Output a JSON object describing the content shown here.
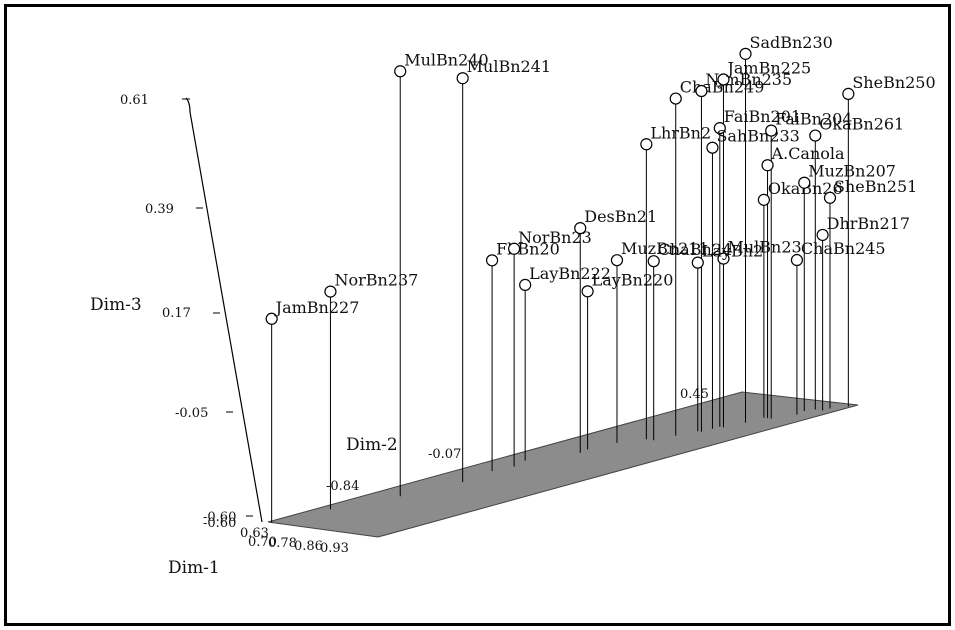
{
  "chart_data": {
    "type": "scatter",
    "projection": "3d",
    "title": "",
    "axes": {
      "x": {
        "label": "Dim-1",
        "ticks": [
          "0.63",
          "0.70",
          "0.78",
          "0.86",
          "0.93"
        ]
      },
      "y": {
        "label": "Dim-2",
        "ticks": [
          "-0.84",
          "-0.07",
          "0.45"
        ]
      },
      "z": {
        "label": "Dim-3",
        "ticks": [
          "-0.60",
          "-0.05",
          "0.17",
          "0.39",
          "0.61"
        ],
        "ylim": [
          -0.6,
          0.61
        ]
      }
    },
    "floor_color": "#8c8c8c",
    "points": [
      {
        "label": "MulBn240",
        "x": 0.7,
        "y": -0.55,
        "z": 0.61
      },
      {
        "label": "MulBn241",
        "x": 0.72,
        "y": -0.4,
        "z": 0.55
      },
      {
        "label": "NorBn237",
        "x": 0.66,
        "y": -0.7,
        "z": 0.02
      },
      {
        "label": "JamBn227",
        "x": 0.64,
        "y": -0.84,
        "z": -0.02
      },
      {
        "label": "FbBn20",
        "x": 0.7,
        "y": -0.3,
        "z": 0.0
      },
      {
        "label": "NorBn23",
        "x": 0.71,
        "y": -0.25,
        "z": 0.02
      },
      {
        "label": "DesBn21",
        "x": 0.74,
        "y": -0.1,
        "z": 0.04
      },
      {
        "label": "LayBn222",
        "x": 0.69,
        "y": -0.2,
        "z": -0.1
      },
      {
        "label": "LayBn220",
        "x": 0.73,
        "y": -0.07,
        "z": -0.15
      },
      {
        "label": "MuzBn211",
        "x": 0.74,
        "y": 0.0,
        "z": -0.08
      },
      {
        "label": "ChaBn24",
        "x": 0.79,
        "y": 0.05,
        "z": -0.09
      },
      {
        "label": "LhrBn2",
        "x": 0.77,
        "y": 0.05,
        "z": 0.24
      },
      {
        "label": "ChaBn249",
        "x": 0.8,
        "y": 0.1,
        "z": 0.36
      },
      {
        "label": "NjmBn235",
        "x": 0.82,
        "y": 0.15,
        "z": 0.37
      },
      {
        "label": "JamBn225",
        "x": 0.83,
        "y": 0.2,
        "z": 0.39
      },
      {
        "label": "SadBn230",
        "x": 0.84,
        "y": 0.25,
        "z": 0.45
      },
      {
        "label": "FaiBn201",
        "x": 0.82,
        "y": 0.2,
        "z": 0.25
      },
      {
        "label": "SahBn233",
        "x": 0.82,
        "y": 0.18,
        "z": 0.2
      },
      {
        "label": "FaiBn204",
        "x": 0.86,
        "y": 0.3,
        "z": 0.22
      },
      {
        "label": "OkaBn261",
        "x": 0.88,
        "y": 0.4,
        "z": 0.18
      },
      {
        "label": "A.Canola",
        "x": 0.85,
        "y": 0.3,
        "z": 0.12
      },
      {
        "label": "OkaBn26",
        "x": 0.84,
        "y": 0.3,
        "z": 0.02
      },
      {
        "label": "MuzBn207",
        "x": 0.87,
        "y": 0.38,
        "z": 0.05
      },
      {
        "label": "SheBn250",
        "x": 0.92,
        "y": 0.45,
        "z": 0.29
      },
      {
        "label": "SheBn251",
        "x": 0.9,
        "y": 0.42,
        "z": 0.0
      },
      {
        "label": "DhrBn217",
        "x": 0.9,
        "y": 0.4,
        "z": -0.1
      },
      {
        "label": "ChaBn245",
        "x": 0.88,
        "y": 0.35,
        "z": -0.16
      },
      {
        "label": "MulBn23",
        "x": 0.83,
        "y": 0.2,
        "z": -0.12
      },
      {
        "label": "LayBn2",
        "x": 0.81,
        "y": 0.15,
        "z": -0.12
      }
    ]
  }
}
